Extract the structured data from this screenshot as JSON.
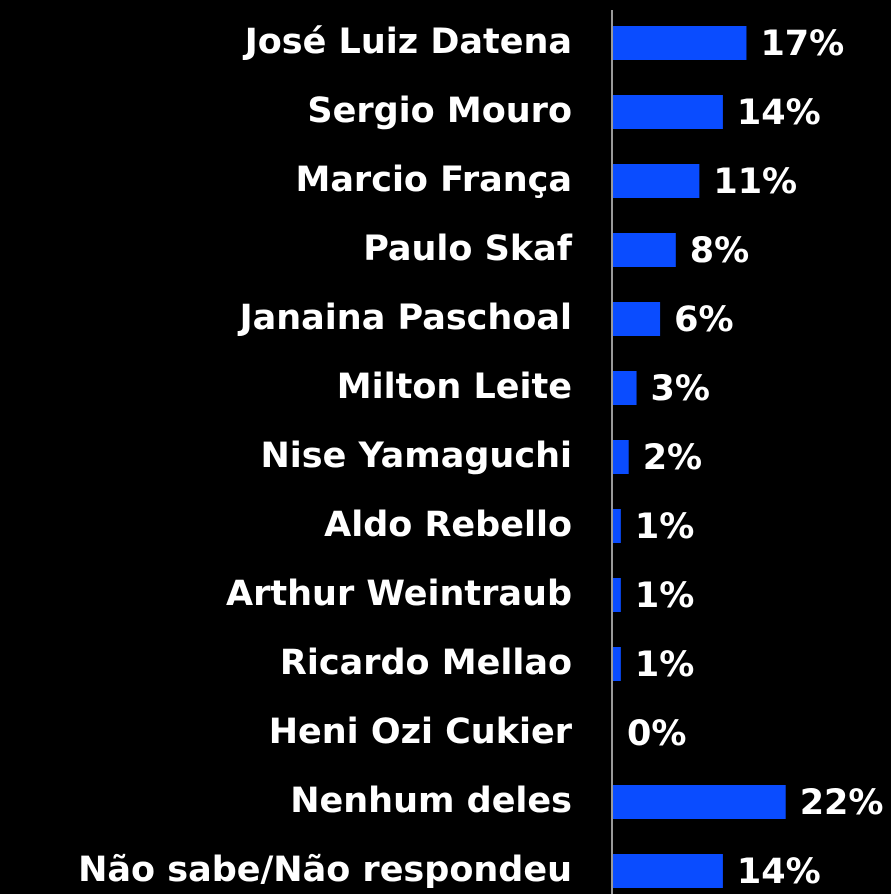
{
  "chart_data": {
    "type": "barh",
    "color": "#0a4cff",
    "categories": [
      "José Luiz Datena",
      "Sergio Mouro",
      "Marcio França",
      "Paulo Skaf",
      "Janaina Paschoal",
      "Milton Leite",
      "Nise Yamaguchi",
      "Aldo Rebello",
      "Arthur Weintraub",
      "Ricardo Mellao",
      "Heni Ozi Cukier",
      "Nenhum deles",
      "Não sabe/Não respondeu"
    ],
    "values": [
      17,
      14,
      11,
      8,
      6,
      3,
      2,
      1,
      1,
      1,
      0,
      22,
      14
    ],
    "value_labels": [
      "17%",
      "14%",
      "11%",
      "8%",
      "6%",
      "3%",
      "2%",
      "1%",
      "1%",
      "1%",
      "0%",
      "22%",
      "14%"
    ]
  }
}
